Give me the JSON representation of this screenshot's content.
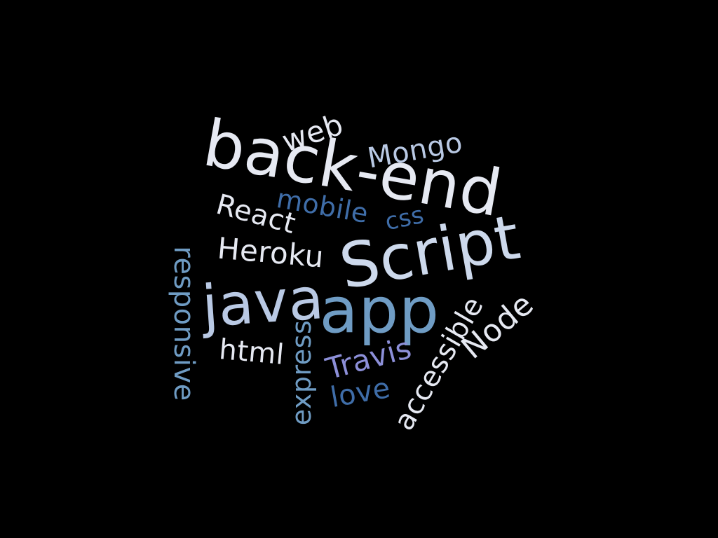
{
  "background_color": "#000000",
  "words": {
    "back_end": {
      "text": "back-end",
      "color": "#e6e9f2"
    },
    "web": {
      "text": "web",
      "color": "#e6e9f2"
    },
    "mongo": {
      "text": "Mongo",
      "color": "#b9c9e4"
    },
    "mobile": {
      "text": "mobile",
      "color": "#3f6da8"
    },
    "css": {
      "text": "css",
      "color": "#3f6da8"
    },
    "react": {
      "text": "React",
      "color": "#e6e9f2"
    },
    "heroku": {
      "text": "Heroku",
      "color": "#e6e9f2"
    },
    "script": {
      "text": "Script",
      "color": "#cdd9ec"
    },
    "java": {
      "text": "java",
      "color": "#b9c9e4"
    },
    "app": {
      "text": "app",
      "color": "#6f9cc4"
    },
    "responsive": {
      "text": "responsive",
      "color": "#6f9cc4"
    },
    "html": {
      "text": "html",
      "color": "#e6e9f2"
    },
    "express": {
      "text": "express",
      "color": "#6f9cc4"
    },
    "travis": {
      "text": "Travis",
      "color": "#8c8fd8"
    },
    "love": {
      "text": "love",
      "color": "#3f6da8"
    },
    "accessible": {
      "text": "accessible",
      "color": "#e6e9f2"
    },
    "node": {
      "text": "Node",
      "color": "#e6e9f2"
    }
  }
}
